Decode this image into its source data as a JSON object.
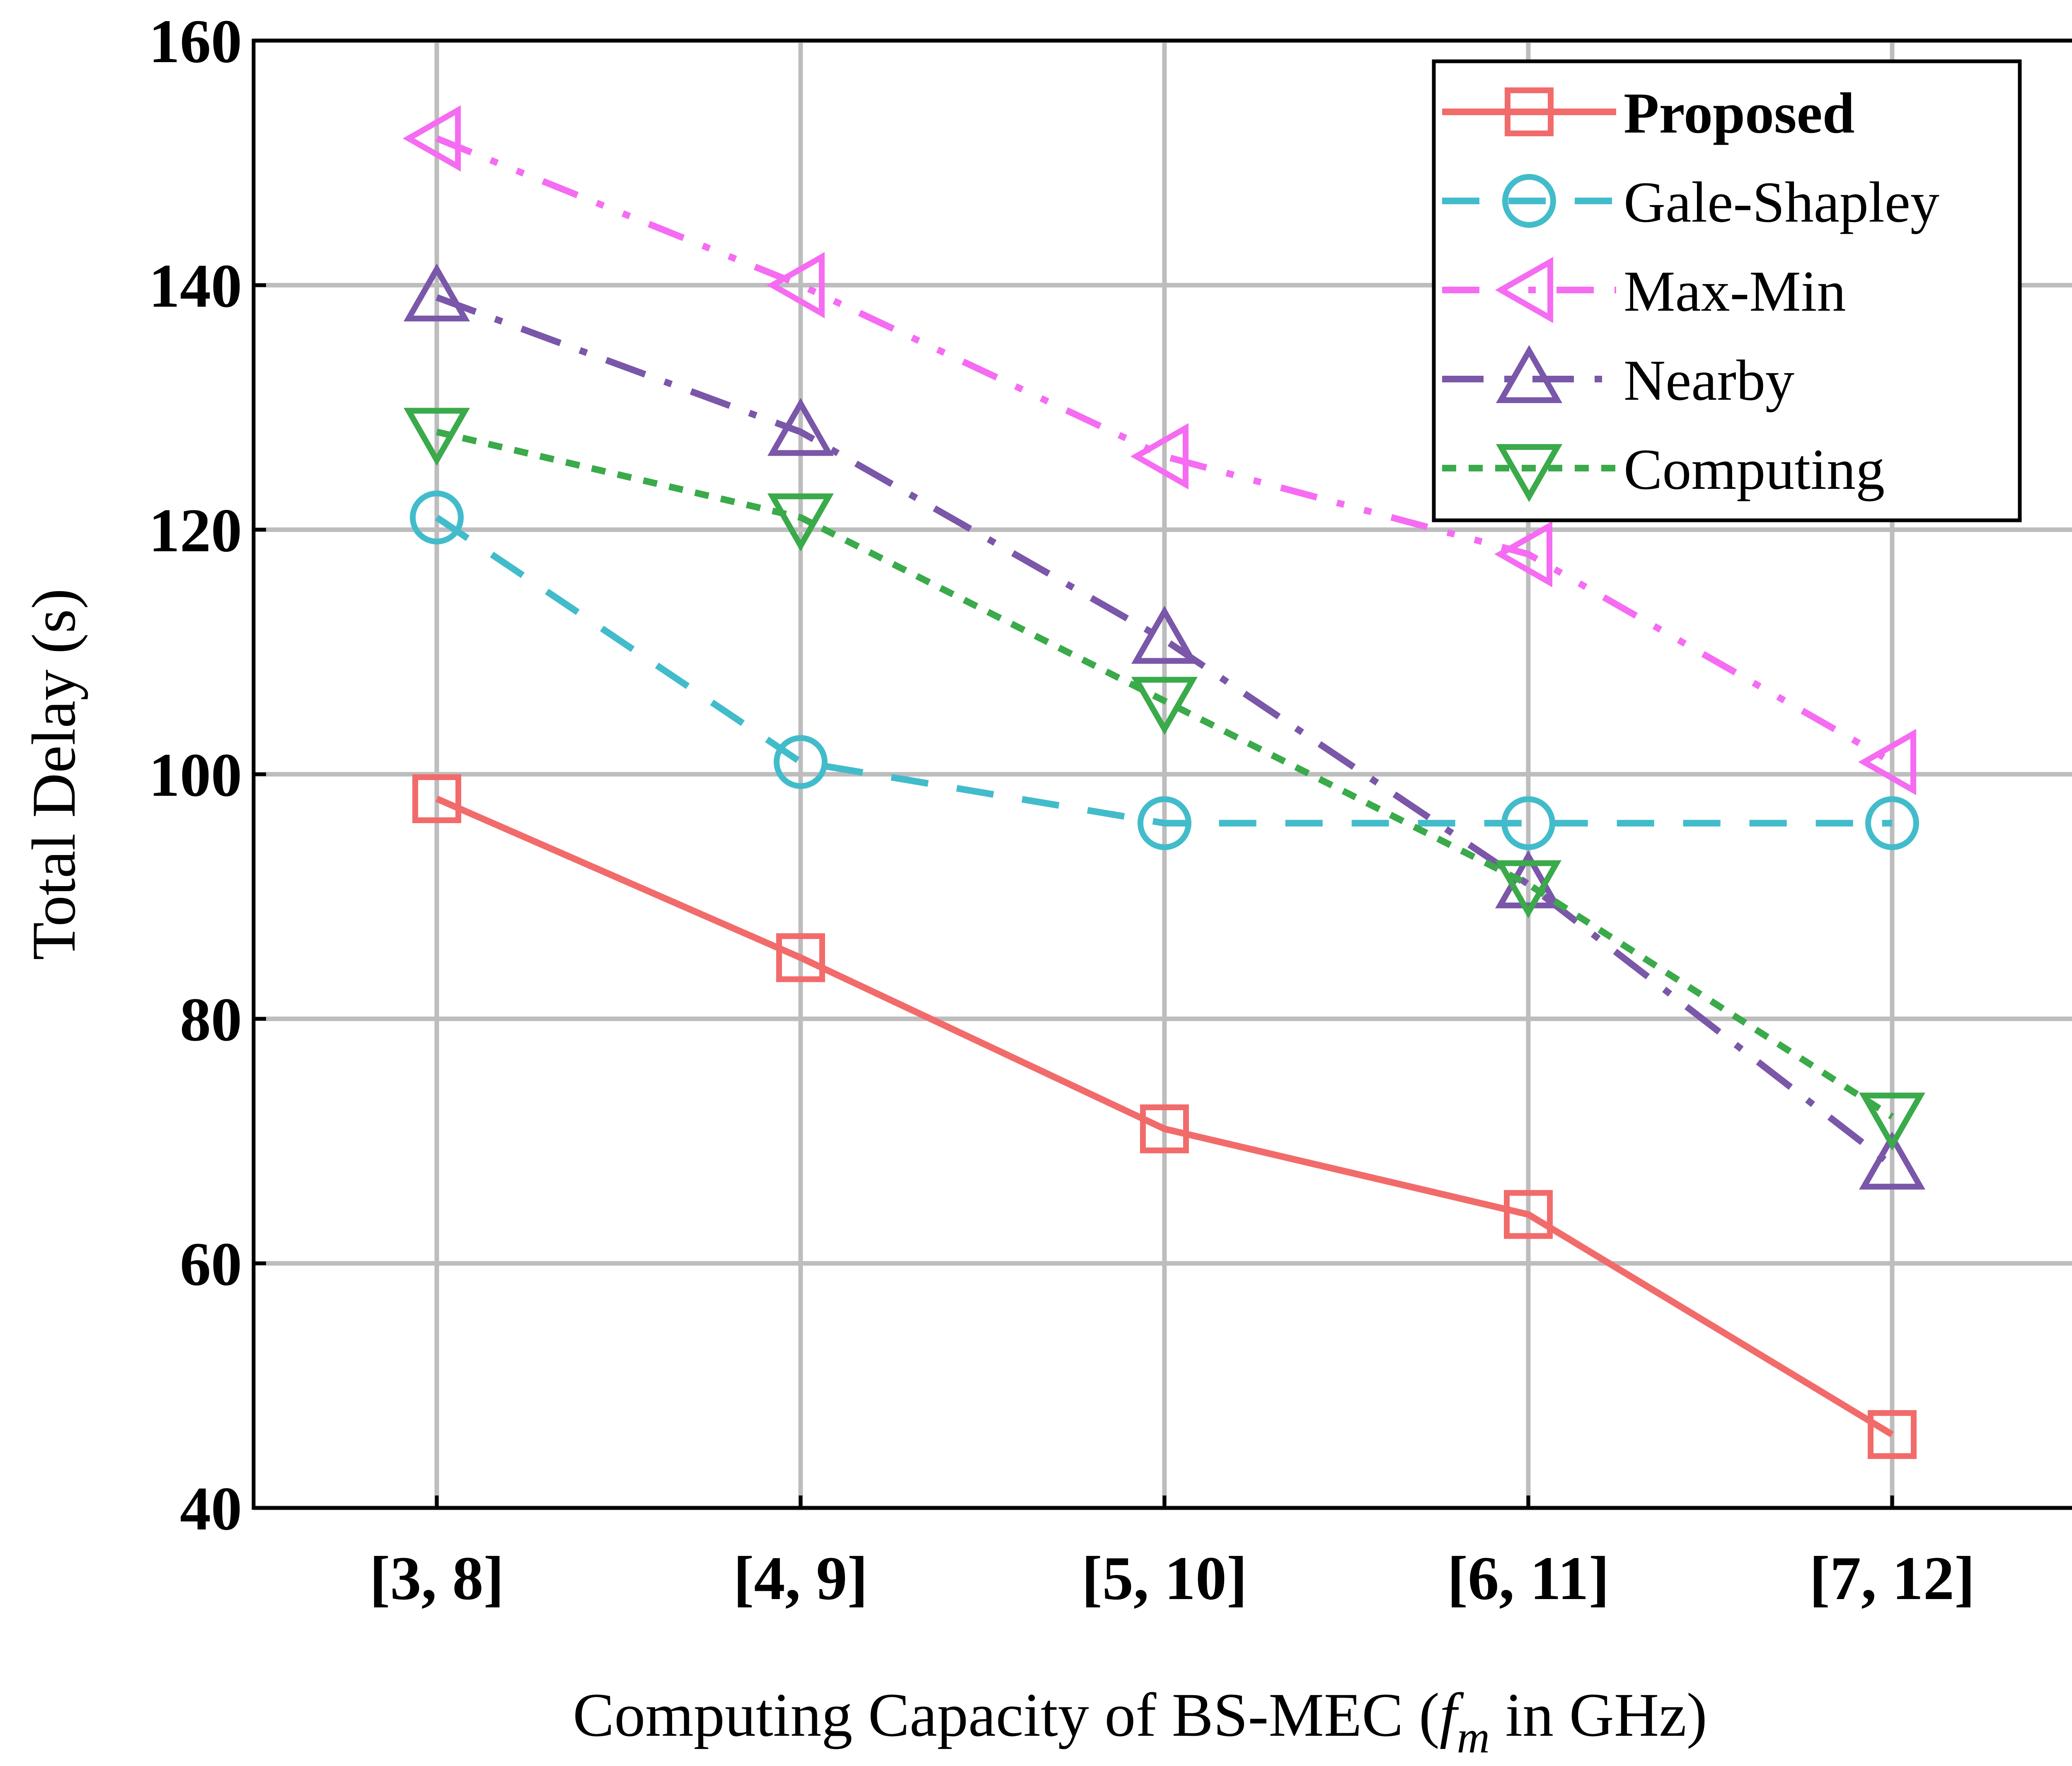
{
  "chart_data": {
    "type": "line",
    "title": "",
    "xlabel": {
      "prefix": "Computing Capacity of BS-MEC (",
      "var": "f",
      "sub": "m",
      "suffix": " in GHz)"
    },
    "ylabel": "Total Delay (s)",
    "ylim": [
      40,
      160
    ],
    "yticks": [
      40,
      60,
      80,
      100,
      120,
      140,
      160
    ],
    "categories": [
      "[3, 8]",
      "[4, 9]",
      "[5, 10]",
      "[6, 11]",
      "[7, 12]"
    ],
    "grid": true,
    "legend_position": "top-right",
    "series": [
      {
        "name": "Proposed",
        "values": [
          98,
          85,
          71,
          64,
          46
        ],
        "color": "#f26b6b",
        "marker": "square",
        "dash": "solid",
        "bold_label": true
      },
      {
        "name": "Gale-Shapley",
        "values": [
          121,
          101,
          96,
          96,
          96
        ],
        "color": "#42bccb",
        "marker": "circle",
        "dash": "dash",
        "bold_label": false
      },
      {
        "name": "Max-Min",
        "values": [
          152,
          140,
          126,
          118,
          101
        ],
        "color": "#f56cf2",
        "marker": "triangle-left",
        "dash": "dashdotdot",
        "bold_label": false
      },
      {
        "name": "Nearby",
        "values": [
          139,
          128,
          111,
          91,
          68
        ],
        "color": "#7a57a8",
        "marker": "triangle-up",
        "dash": "dashdot",
        "bold_label": false
      },
      {
        "name": "Computing",
        "values": [
          128,
          121,
          106,
          91,
          72
        ],
        "color": "#3aaa4a",
        "marker": "triangle-down",
        "dash": "dot",
        "bold_label": false
      }
    ]
  }
}
